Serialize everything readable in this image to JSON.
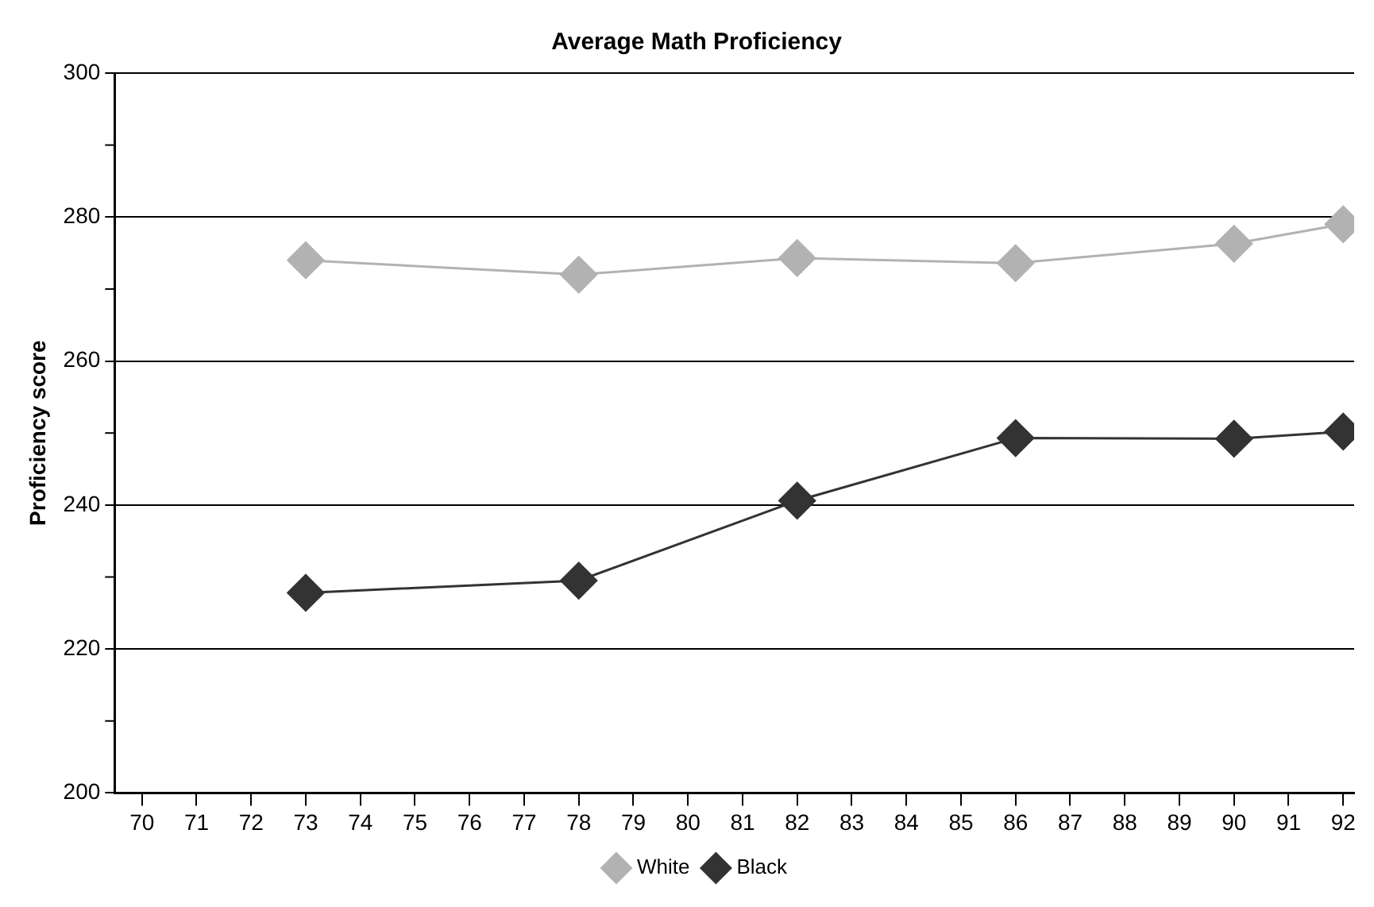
{
  "chart_data": {
    "type": "line",
    "title": "Average Math Proficiency",
    "ylabel": "Proficiency score",
    "x": [
      73,
      78,
      82,
      86,
      90,
      92
    ],
    "series": [
      {
        "name": "White",
        "color": "#b2b2b2",
        "values": [
          274,
          272,
          274.3,
          273.6,
          276.3,
          279
        ]
      },
      {
        "name": "Black",
        "color": "#333333",
        "values": [
          227.8,
          229.5,
          240.6,
          249.3,
          249.2,
          250.2
        ]
      }
    ],
    "xlim": [
      69.5,
      92.2
    ],
    "xticks": [
      70,
      71,
      72,
      73,
      74,
      75,
      76,
      77,
      78,
      79,
      80,
      81,
      82,
      83,
      84,
      85,
      86,
      87,
      88,
      89,
      90,
      91,
      92
    ],
    "ylim": [
      200,
      300
    ],
    "yticks": [
      200,
      {
        "value": 210,
        "label": null
      },
      220,
      {
        "value": 230,
        "label": null
      },
      240,
      {
        "value": 250,
        "label": null
      },
      260,
      {
        "value": 270,
        "label": null
      },
      280,
      {
        "value": 290,
        "label": null
      },
      300
    ],
    "grid": "y",
    "legend": "bottom",
    "marker": "diamond",
    "line_style": "solid"
  }
}
